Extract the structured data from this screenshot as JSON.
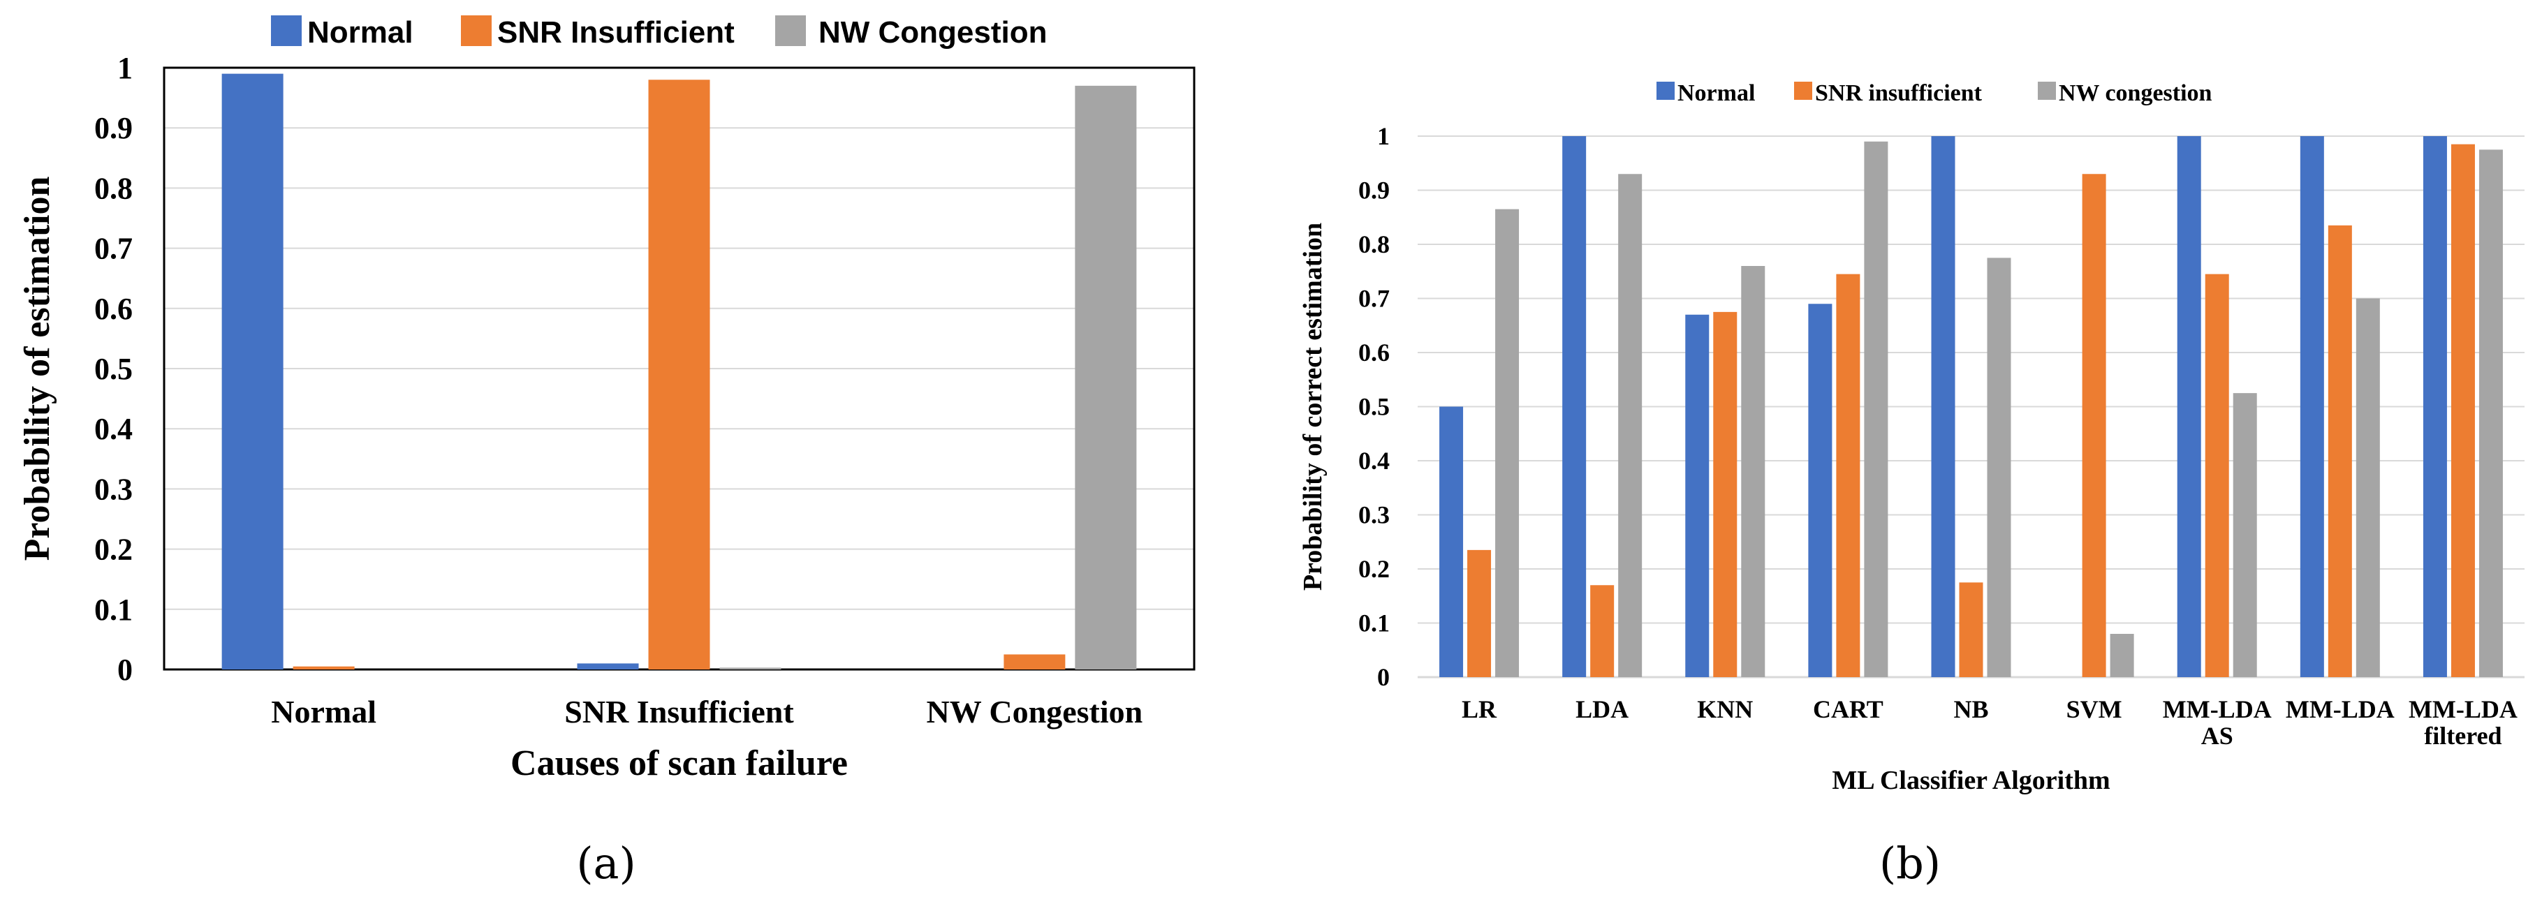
{
  "colors": {
    "normal": "#4472C4",
    "snr": "#ED7D31",
    "nw": "#A5A5A5",
    "grid": "#D9D9D9",
    "axis": "#000000"
  },
  "chart_data": [
    {
      "id": "a",
      "type": "bar",
      "panel_label": "(a)",
      "title": "",
      "xlabel": "Causes of scan failure",
      "ylabel": "Probability of estimation",
      "ylim": [
        0,
        1
      ],
      "yticks": [
        "0",
        "0.1",
        "0.2",
        "0.3",
        "0.4",
        "0.5",
        "0.6",
        "0.7",
        "0.8",
        "0.9",
        "1"
      ],
      "categories": [
        "Normal",
        "SNR Insufficient",
        "NW Congestion"
      ],
      "series": [
        {
          "name": "Normal",
          "color_key": "normal",
          "values": [
            0.99,
            0.01,
            0.0
          ]
        },
        {
          "name": "SNR Insufficient",
          "color_key": "snr",
          "values": [
            0.005,
            0.98,
            0.025
          ]
        },
        {
          "name": "NW Congestion",
          "color_key": "nw",
          "values": [
            0.0,
            0.003,
            0.97
          ]
        }
      ],
      "legend_position": "top"
    },
    {
      "id": "b",
      "type": "bar",
      "panel_label": "(b)",
      "title": "",
      "xlabel": "ML Classifier Algorithm",
      "ylabel": "Probability of correct estimation",
      "ylim": [
        0,
        1
      ],
      "yticks": [
        "0",
        "0.1",
        "0.2",
        "0.3",
        "0.4",
        "0.5",
        "0.6",
        "0.7",
        "0.8",
        "0.9",
        "1"
      ],
      "categories": [
        [
          "LR"
        ],
        [
          "LDA"
        ],
        [
          "KNN"
        ],
        [
          "CART"
        ],
        [
          "NB"
        ],
        [
          "SVM"
        ],
        [
          "MM-LDA",
          "AS"
        ],
        [
          "MM-LDA"
        ],
        [
          "MM-LDA",
          "filtered"
        ]
      ],
      "series": [
        {
          "name": "Normal",
          "color_key": "normal",
          "values": [
            0.5,
            1.0,
            0.67,
            0.69,
            1.0,
            0.0,
            1.0,
            1.0,
            1.0
          ]
        },
        {
          "name": "SNR insufficient",
          "color_key": "snr",
          "values": [
            0.235,
            0.17,
            0.675,
            0.745,
            0.175,
            0.93,
            0.745,
            0.835,
            0.985
          ]
        },
        {
          "name": "NW congestion",
          "color_key": "nw",
          "values": [
            0.865,
            0.93,
            0.76,
            0.99,
            0.775,
            0.08,
            0.525,
            0.7,
            0.975
          ]
        }
      ],
      "legend_position": "top"
    }
  ]
}
